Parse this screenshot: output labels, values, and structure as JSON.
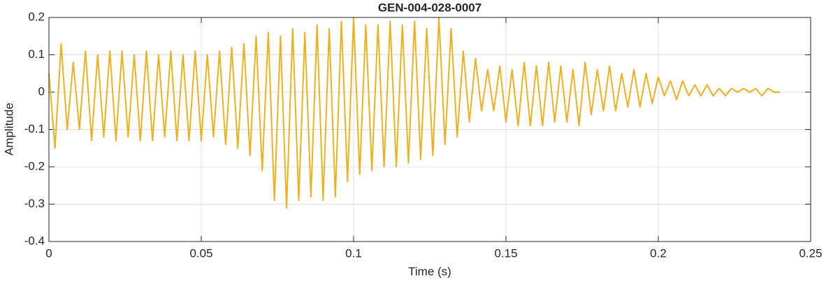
{
  "chart_data": {
    "type": "line",
    "title": "GEN-004-028-0007",
    "xlabel": "Time (s)",
    "ylabel": "Amplitude",
    "x": [
      0,
      0.002,
      0.004,
      0.006,
      0.008,
      0.01,
      0.012,
      0.014,
      0.016,
      0.018,
      0.02,
      0.022,
      0.024,
      0.026,
      0.028,
      0.03,
      0.032,
      0.034,
      0.036,
      0.038,
      0.04,
      0.042,
      0.044,
      0.046,
      0.048,
      0.05,
      0.052,
      0.054,
      0.056,
      0.058,
      0.06,
      0.062,
      0.064,
      0.066,
      0.068,
      0.07,
      0.072,
      0.074,
      0.076,
      0.078,
      0.08,
      0.082,
      0.084,
      0.086,
      0.088,
      0.09,
      0.092,
      0.094,
      0.096,
      0.098,
      0.1,
      0.102,
      0.104,
      0.106,
      0.108,
      0.11,
      0.112,
      0.114,
      0.116,
      0.118,
      0.12,
      0.122,
      0.124,
      0.126,
      0.128,
      0.13,
      0.132,
      0.134,
      0.136,
      0.138,
      0.14,
      0.142,
      0.144,
      0.146,
      0.148,
      0.15,
      0.152,
      0.154,
      0.156,
      0.158,
      0.16,
      0.162,
      0.164,
      0.166,
      0.168,
      0.17,
      0.172,
      0.174,
      0.176,
      0.178,
      0.18,
      0.182,
      0.184,
      0.186,
      0.188,
      0.19,
      0.192,
      0.194,
      0.196,
      0.198,
      0.2,
      0.202,
      0.204,
      0.206,
      0.208,
      0.21,
      0.212,
      0.214,
      0.216,
      0.218,
      0.22,
      0.222,
      0.224,
      0.226,
      0.228,
      0.23,
      0.232,
      0.234,
      0.236,
      0.238,
      0.24
    ],
    "series": [
      {
        "color": "#EDB120",
        "values": [
          0.05,
          -0.15,
          0.13,
          -0.1,
          0.08,
          -0.1,
          0.11,
          -0.13,
          0.1,
          -0.12,
          0.11,
          -0.13,
          0.11,
          -0.12,
          0.1,
          -0.13,
          0.11,
          -0.13,
          0.1,
          -0.12,
          0.11,
          -0.13,
          0.1,
          -0.13,
          0.11,
          -0.13,
          0.1,
          -0.12,
          0.11,
          -0.14,
          0.12,
          -0.15,
          0.13,
          -0.17,
          0.15,
          -0.21,
          0.16,
          -0.29,
          0.15,
          -0.31,
          0.17,
          -0.29,
          0.16,
          -0.28,
          0.18,
          -0.29,
          0.17,
          -0.28,
          0.19,
          -0.24,
          0.2,
          -0.22,
          0.18,
          -0.21,
          0.18,
          -0.2,
          0.19,
          -0.2,
          0.18,
          -0.19,
          0.19,
          -0.18,
          0.17,
          -0.17,
          0.2,
          -0.14,
          0.17,
          -0.12,
          0.11,
          -0.08,
          0.09,
          -0.05,
          0.06,
          -0.05,
          0.07,
          -0.08,
          0.06,
          -0.09,
          0.08,
          -0.09,
          0.07,
          -0.09,
          0.08,
          -0.08,
          0.07,
          -0.08,
          0.06,
          -0.09,
          0.08,
          -0.06,
          0.06,
          -0.05,
          0.07,
          -0.05,
          0.05,
          -0.04,
          0.06,
          -0.04,
          0.05,
          -0.03,
          0.04,
          -0.01,
          0.03,
          -0.02,
          0.03,
          -0.01,
          0.02,
          -0.01,
          0.02,
          -0.01,
          0.01,
          -0.01,
          0.01,
          0,
          0.01,
          0,
          0.01,
          -0.01,
          0.01,
          0,
          0
        ]
      }
    ],
    "xlim": [
      0,
      0.25
    ],
    "xticks": [
      0,
      0.05,
      0.1,
      0.15,
      0.2,
      0.25
    ],
    "ylim": [
      -0.4,
      0.2
    ],
    "yticks": [
      -0.4,
      -0.3,
      -0.2,
      -0.1,
      0,
      0.1,
      0.2
    ],
    "grid": true
  }
}
